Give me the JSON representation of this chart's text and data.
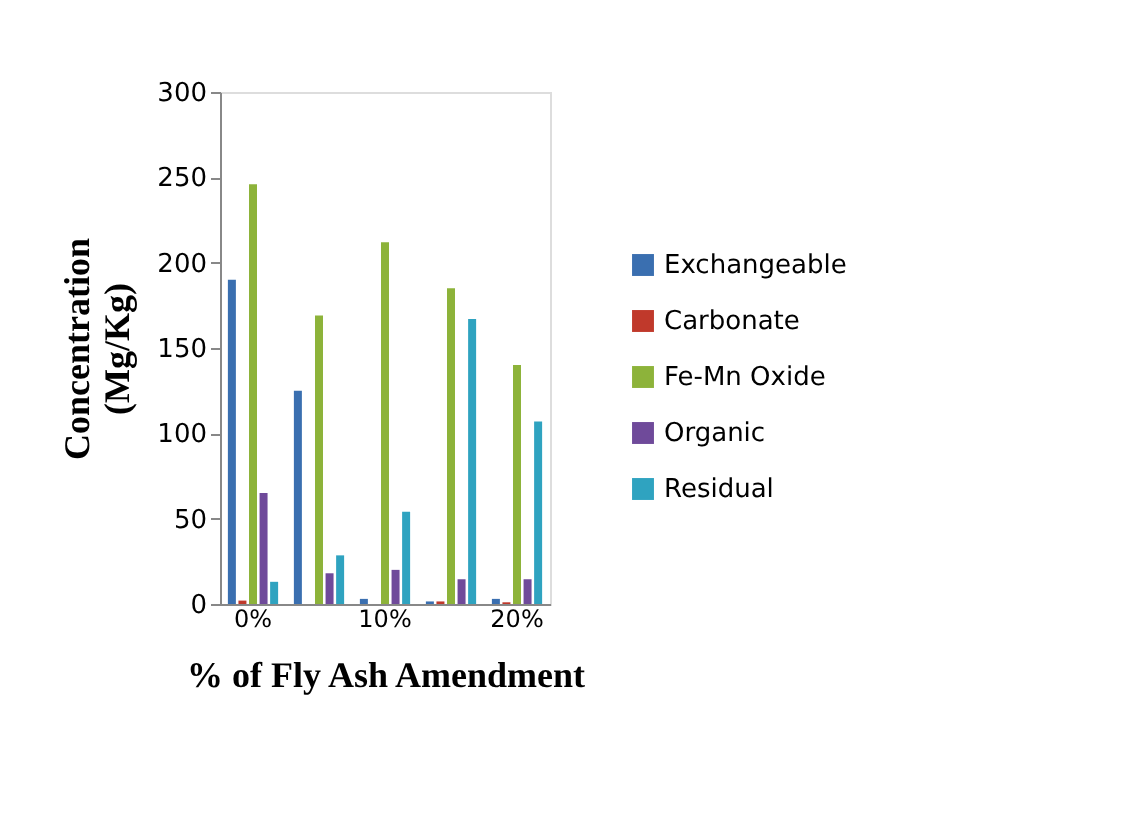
{
  "chart_data": {
    "type": "bar",
    "xlabel": "% of Fly Ash Amendment",
    "ylabel": "Concentration\n(Mg/Kg)",
    "categories": [
      "0%",
      null,
      "10%",
      null,
      "20%"
    ],
    "series": [
      {
        "name": "Exchangeable",
        "color": "#3a6fb0",
        "values": [
          190,
          125,
          3,
          1.5,
          3
        ]
      },
      {
        "name": "Carbonate",
        "color": "#c0392b",
        "values": [
          2,
          0,
          0,
          1.5,
          1
        ]
      },
      {
        "name": "Fe-Mn Oxide",
        "color": "#8db33a",
        "values": [
          246,
          169,
          212,
          185,
          140
        ]
      },
      {
        "name": "Organic",
        "color": "#6f4a9a",
        "values": [
          65,
          18,
          20,
          14.5,
          14.5
        ]
      },
      {
        "name": "Residual",
        "color": "#2fa3c0",
        "values": [
          13,
          28.5,
          54,
          167,
          107
        ]
      }
    ],
    "ylim": [
      0,
      300
    ],
    "yticks": [
      0,
      50,
      100,
      150,
      200,
      250,
      300
    ],
    "grid": false,
    "legend": "right"
  }
}
